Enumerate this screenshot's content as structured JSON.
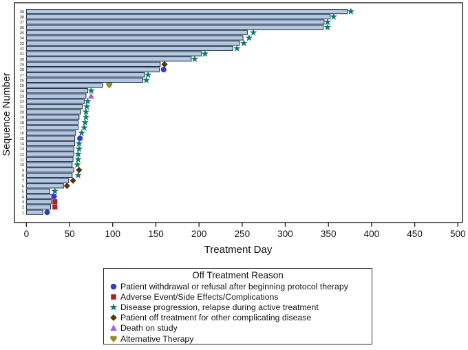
{
  "chart_data": {
    "type": "bar",
    "variant": "swimmer-plot-horizontal",
    "title": "",
    "xlabel": "Treatment Day",
    "ylabel": "Sequence Number",
    "xlim": [
      0,
      500
    ],
    "xticks": [
      0,
      50,
      100,
      150,
      200,
      250,
      300,
      350,
      400,
      450,
      500
    ],
    "grid": false,
    "bar_fill_color": "#b5c8e2",
    "bar_border_color": "#1c2e44",
    "frame_color": "#3c3c3c",
    "rows": [
      {
        "seq": 1,
        "bar_end_day": 19,
        "event": "withdrawal",
        "event_day": 24
      },
      {
        "seq": 2,
        "bar_end_day": 28,
        "event": "adverse",
        "event_day": 33
      },
      {
        "seq": 3,
        "bar_end_day": 29,
        "event": "adverse",
        "event_day": 33
      },
      {
        "seq": 4,
        "bar_end_day": 30,
        "event": "withdrawal",
        "event_day": 32
      },
      {
        "seq": 5,
        "bar_end_day": 27,
        "event": "progression",
        "event_day": 33
      },
      {
        "seq": 6,
        "bar_end_day": 43,
        "event": "complicating",
        "event_day": 47
      },
      {
        "seq": 7,
        "bar_end_day": 49,
        "event": "complicating",
        "event_day": 54
      },
      {
        "seq": 8,
        "bar_end_day": 53,
        "event": "progression",
        "event_day": 60
      },
      {
        "seq": 9,
        "bar_end_day": 55,
        "event": "complicating",
        "event_day": 61
      },
      {
        "seq": 10,
        "bar_end_day": 53,
        "event": "progression",
        "event_day": 59
      },
      {
        "seq": 11,
        "bar_end_day": 54,
        "event": "progression",
        "event_day": 60
      },
      {
        "seq": 12,
        "bar_end_day": 55,
        "event": "progression",
        "event_day": 60
      },
      {
        "seq": 13,
        "bar_end_day": 55,
        "event": "progression",
        "event_day": 61
      },
      {
        "seq": 14,
        "bar_end_day": 56,
        "event": "progression",
        "event_day": 61
      },
      {
        "seq": 15,
        "bar_end_day": 56,
        "event": "withdrawal",
        "event_day": 62
      },
      {
        "seq": 16,
        "bar_end_day": 57,
        "event": "progression",
        "event_day": 64
      },
      {
        "seq": 17,
        "bar_end_day": 60,
        "event": "progression",
        "event_day": 67
      },
      {
        "seq": 18,
        "bar_end_day": 60,
        "event": "progression",
        "event_day": 68
      },
      {
        "seq": 19,
        "bar_end_day": 61,
        "event": "progression",
        "event_day": 69
      },
      {
        "seq": 20,
        "bar_end_day": 63,
        "event": "progression",
        "event_day": 69
      },
      {
        "seq": 21,
        "bar_end_day": 65,
        "event": "progression",
        "event_day": 70
      },
      {
        "seq": 22,
        "bar_end_day": 67,
        "event": "progression",
        "event_day": 71
      },
      {
        "seq": 23,
        "bar_end_day": 69,
        "event": "death",
        "event_day": 75
      },
      {
        "seq": 24,
        "bar_end_day": 71,
        "event": "progression",
        "event_day": 75
      },
      {
        "seq": 25,
        "bar_end_day": 88,
        "event": "alternative",
        "event_day": 96
      },
      {
        "seq": 26,
        "bar_end_day": 135,
        "event": "progression",
        "event_day": 139
      },
      {
        "seq": 27,
        "bar_end_day": 137,
        "event": "progression",
        "event_day": 141
      },
      {
        "seq": 28,
        "bar_end_day": 154,
        "event": "withdrawal",
        "event_day": 159
      },
      {
        "seq": 29,
        "bar_end_day": 155,
        "event": "complicating",
        "event_day": 160
      },
      {
        "seq": 30,
        "bar_end_day": 191,
        "event": "progression",
        "event_day": 195
      },
      {
        "seq": 31,
        "bar_end_day": 203,
        "event": "progression",
        "event_day": 207
      },
      {
        "seq": 32,
        "bar_end_day": 239,
        "event": "progression",
        "event_day": 244
      },
      {
        "seq": 33,
        "bar_end_day": 247,
        "event": "progression",
        "event_day": 252
      },
      {
        "seq": 34,
        "bar_end_day": 251,
        "event": "progression",
        "event_day": 258
      },
      {
        "seq": 35,
        "bar_end_day": 256,
        "event": "progression",
        "event_day": 263
      },
      {
        "seq": 36,
        "bar_end_day": 344,
        "event": "progression",
        "event_day": 349
      },
      {
        "seq": 37,
        "bar_end_day": 345,
        "event": "progression",
        "event_day": 349
      },
      {
        "seq": 38,
        "bar_end_day": 352,
        "event": "progression",
        "event_day": 356
      },
      {
        "seq": 39,
        "bar_end_day": 372,
        "event": "progression",
        "event_day": 376
      }
    ],
    "legend": {
      "title": "Off Treatment Reason",
      "position": "bottom",
      "items": [
        {
          "key": "withdrawal",
          "shape": "circle",
          "color": "#3639cf",
          "label": "Patient withdrawal or refusal after beginning protocol therapy"
        },
        {
          "key": "adverse",
          "shape": "square",
          "color": "#b02126",
          "label": "Adverse Event/Side Effects/Complications"
        },
        {
          "key": "progression",
          "shape": "star",
          "color": "#0b7a6b",
          "label": "Disease progression, relapse during active treatment"
        },
        {
          "key": "complicating",
          "shape": "diamond",
          "color": "#56340f",
          "label": "Patient off treatment for other complicating disease"
        },
        {
          "key": "death",
          "shape": "triangle-up",
          "color": "#a95fe3",
          "label": "Death on study"
        },
        {
          "key": "alternative",
          "shape": "pentagon-down",
          "color": "#8d9322",
          "label": "Alternative Therapy"
        }
      ]
    }
  }
}
